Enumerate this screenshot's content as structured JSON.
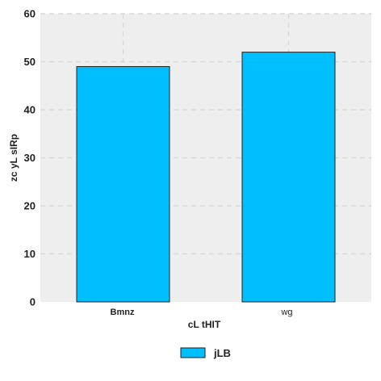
{
  "chart_data": {
    "type": "bar",
    "title": "",
    "xlabel": "cL tHIT",
    "ylabel": "zc yL sIRp",
    "categories": [
      "Bmnz",
      "wg"
    ],
    "series": [
      {
        "name": "jLB",
        "values": [
          49,
          52
        ],
        "color": "#00bfff"
      }
    ],
    "ylim": [
      0,
      60
    ],
    "yticks": [
      0,
      10,
      20,
      30,
      40,
      50,
      60
    ],
    "grid": true,
    "legend": "bottom-center",
    "colors": {
      "plot_background": "#eeeeee",
      "gridline": "#d9d9d9",
      "bar_edge": "#222222"
    }
  }
}
